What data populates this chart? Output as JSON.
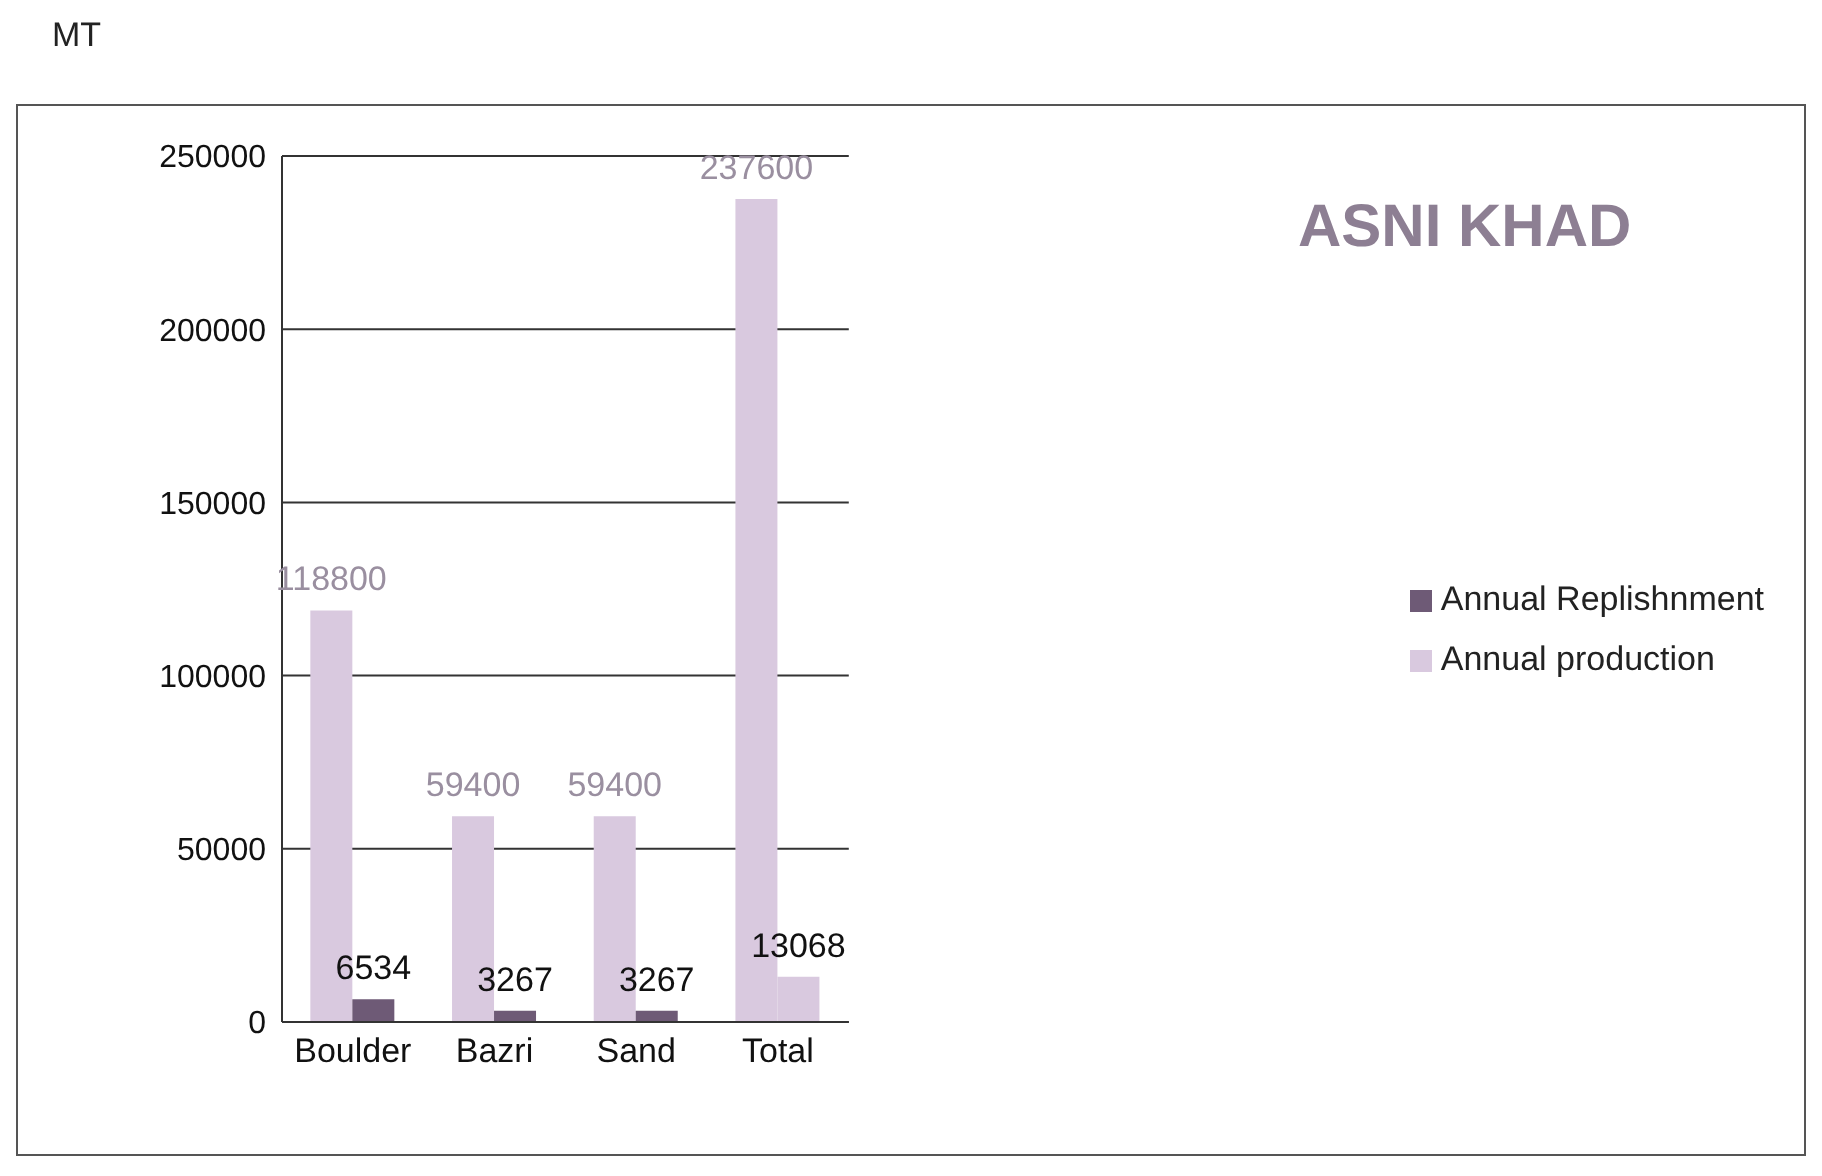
{
  "chart_data": {
    "type": "bar",
    "title": "ASNI KHAD",
    "ylabel": "MT",
    "categories": [
      "Boulder",
      "Bazri",
      "Sand",
      "Total"
    ],
    "series": [
      {
        "name": "Annual production",
        "color": "#d9c9df",
        "values": [
          118800,
          59400,
          59400,
          237600
        ]
      },
      {
        "name": "Annual Replishnment",
        "color": "#6e5a76",
        "colors": [
          "#6e5a76",
          "#6e5a76",
          "#6e5a76",
          "#d9c9df"
        ],
        "values": [
          6534,
          3267,
          3267,
          13068
        ]
      }
    ],
    "ylim": [
      0,
      250000
    ],
    "yticks": [
      0,
      50000,
      100000,
      150000,
      200000,
      250000
    ],
    "grid": "y",
    "legend": "right",
    "data_labels": true
  }
}
